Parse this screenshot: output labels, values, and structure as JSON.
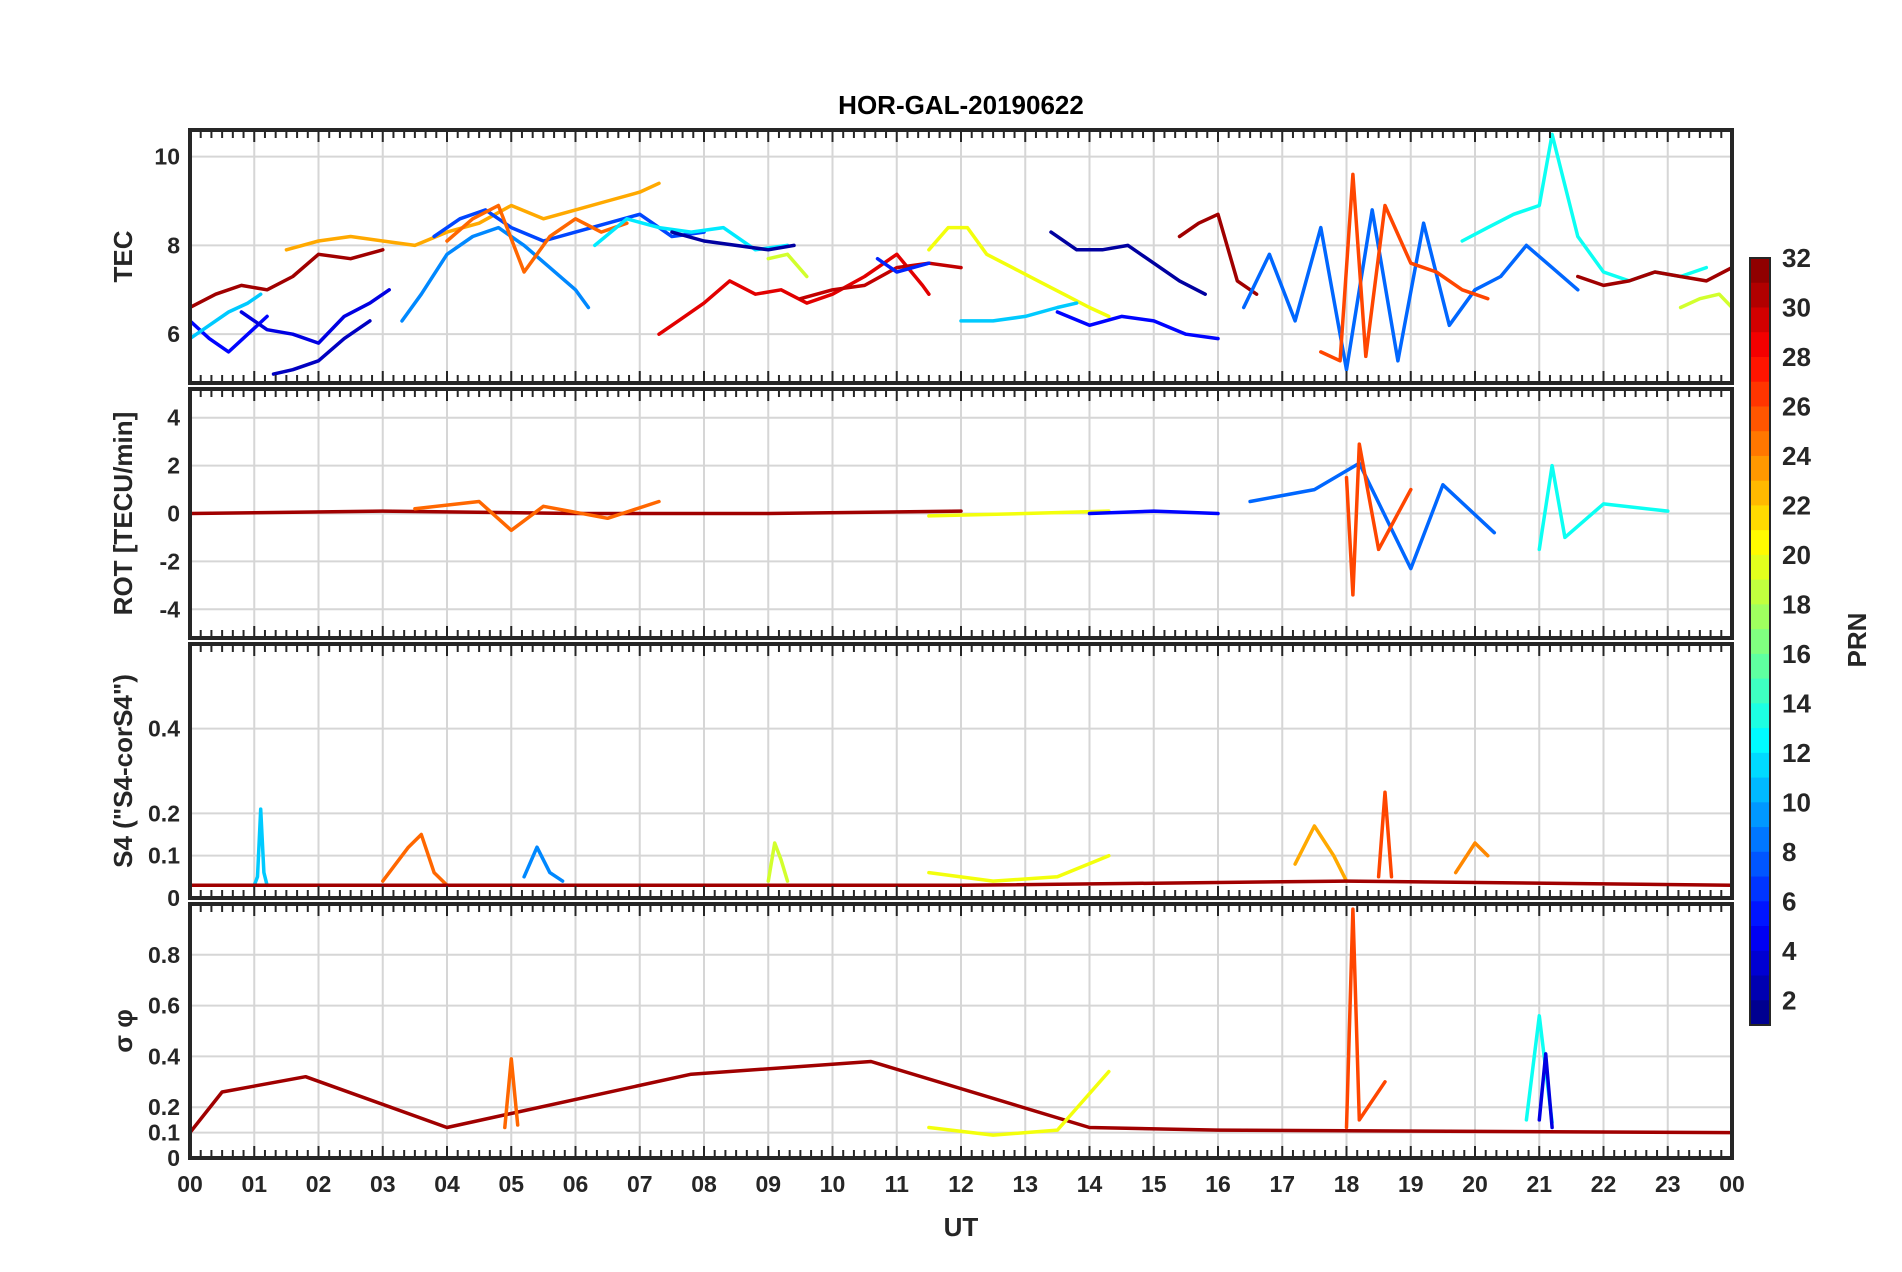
{
  "chart_data": {
    "type": "line",
    "title": "HOR-GAL-20190622",
    "xlabel": "UT",
    "x_ticks": [
      "00",
      "01",
      "02",
      "03",
      "04",
      "05",
      "06",
      "07",
      "08",
      "09",
      "10",
      "11",
      "12",
      "13",
      "14",
      "15",
      "16",
      "17",
      "18",
      "19",
      "20",
      "21",
      "22",
      "23",
      "00"
    ],
    "xlim_hours": [
      0,
      24
    ],
    "colorbar": {
      "label": "PRN",
      "range": [
        1,
        32
      ],
      "ticks": [
        "32",
        "30",
        "28",
        "26",
        "24",
        "22",
        "20",
        "18",
        "16",
        "14",
        "12",
        "10",
        "8",
        "6",
        "4",
        "2"
      ],
      "colormap": "jet"
    },
    "panels": [
      {
        "id": "tec",
        "ylabel": "TEC",
        "ylim": [
          4.9,
          10.6
        ],
        "yticks": [
          "6",
          "8",
          "10"
        ],
        "series": [
          {
            "prn": 5,
            "x": [
              0,
              0.3,
              0.6,
              0.9,
              1.2
            ],
            "y": [
              6.3,
              5.9,
              5.6,
              6.0,
              6.4
            ]
          },
          {
            "prn": 11,
            "x": [
              0,
              0.3,
              0.6,
              0.9,
              1.1
            ],
            "y": [
              5.9,
              6.2,
              6.5,
              6.7,
              6.9
            ]
          },
          {
            "prn": 31,
            "x": [
              0,
              0.4,
              0.8,
              1.2,
              1.6,
              2.0,
              2.5,
              3.0
            ],
            "y": [
              6.6,
              6.9,
              7.1,
              7.0,
              7.3,
              7.8,
              7.7,
              7.9
            ]
          },
          {
            "prn": 4,
            "x": [
              0.8,
              1.2,
              1.6,
              2.0,
              2.4,
              2.8,
              3.1
            ],
            "y": [
              6.5,
              6.1,
              6.0,
              5.8,
              6.4,
              6.7,
              7.0
            ]
          },
          {
            "prn": 3,
            "x": [
              1.3,
              1.6,
              2.0,
              2.4,
              2.8
            ],
            "y": [
              5.1,
              5.2,
              5.4,
              5.9,
              6.3
            ]
          },
          {
            "prn": 23,
            "x": [
              1.5,
              2.0,
              2.5,
              3.0,
              3.5,
              4.0,
              4.5,
              5.0,
              5.5,
              6.0,
              6.5,
              7.0,
              7.3
            ],
            "y": [
              7.9,
              8.1,
              8.2,
              8.1,
              8.0,
              8.3,
              8.5,
              8.9,
              8.6,
              8.8,
              9.0,
              9.2,
              9.4
            ]
          },
          {
            "prn": 9,
            "x": [
              3.3,
              3.6,
              4.0,
              4.4,
              4.8,
              5.2,
              5.6,
              6.0,
              6.2
            ],
            "y": [
              6.3,
              6.9,
              7.8,
              8.2,
              8.4,
              8.0,
              7.5,
              7.0,
              6.6
            ]
          },
          {
            "prn": 7,
            "x": [
              3.8,
              4.2,
              4.6,
              5.0,
              5.5,
              6.0,
              6.5,
              7.0,
              7.5,
              8.0
            ],
            "y": [
              8.2,
              8.6,
              8.8,
              8.4,
              8.1,
              8.3,
              8.5,
              8.7,
              8.2,
              8.3
            ]
          },
          {
            "prn": 25,
            "x": [
              4.0,
              4.4,
              4.8,
              5.2,
              5.6,
              6.0,
              6.4,
              6.8
            ],
            "y": [
              8.1,
              8.6,
              8.9,
              7.4,
              8.2,
              8.6,
              8.3,
              8.5
            ]
          },
          {
            "prn": 12,
            "x": [
              6.3,
              6.8,
              7.3,
              7.8,
              8.3,
              8.8,
              9.3
            ],
            "y": [
              8.0,
              8.6,
              8.4,
              8.3,
              8.4,
              7.9,
              8.0
            ]
          },
          {
            "prn": 2,
            "x": [
              7.5,
              8.0,
              8.5,
              9.0,
              9.4
            ],
            "y": [
              8.3,
              8.1,
              8.0,
              7.9,
              8.0
            ]
          },
          {
            "prn": 19,
            "x": [
              9.0,
              9.3,
              9.6
            ],
            "y": [
              7.7,
              7.8,
              7.3
            ]
          },
          {
            "prn": 29,
            "x": [
              7.3,
              7.6,
              8.0,
              8.4,
              8.8,
              9.2,
              9.6,
              10.0,
              10.5,
              11.0,
              11.4,
              11.5
            ],
            "y": [
              6.0,
              6.3,
              6.7,
              7.2,
              6.9,
              7.0,
              6.7,
              6.9,
              7.3,
              7.8,
              7.1,
              6.9
            ]
          },
          {
            "prn": 30,
            "x": [
              9.5,
              10.0,
              10.5,
              11.0,
              11.5,
              12.0
            ],
            "y": [
              6.8,
              7.0,
              7.1,
              7.5,
              7.6,
              7.5
            ]
          },
          {
            "prn": 6,
            "x": [
              10.7,
              11.0,
              11.5
            ],
            "y": [
              7.7,
              7.4,
              7.6
            ]
          },
          {
            "prn": 20,
            "x": [
              11.5,
              11.8,
              12.1,
              12.4,
              12.8,
              13.2,
              13.6,
              14.0,
              14.3
            ],
            "y": [
              7.9,
              8.4,
              8.4,
              7.8,
              7.5,
              7.2,
              6.9,
              6.6,
              6.4
            ]
          },
          {
            "prn": 11,
            "x": [
              12.0,
              12.5,
              13.0,
              13.5,
              13.8
            ],
            "y": [
              6.3,
              6.3,
              6.4,
              6.6,
              6.7
            ]
          },
          {
            "prn": 2,
            "x": [
              13.4,
              13.8,
              14.2,
              14.6,
              15.0,
              15.4,
              15.8
            ],
            "y": [
              8.3,
              7.9,
              7.9,
              8.0,
              7.6,
              7.2,
              6.9
            ]
          },
          {
            "prn": 5,
            "x": [
              13.5,
              14.0,
              14.5,
              15.0,
              15.5,
              16.0
            ],
            "y": [
              6.5,
              6.2,
              6.4,
              6.3,
              6.0,
              5.9
            ]
          },
          {
            "prn": 31,
            "x": [
              15.4,
              15.7,
              16.0,
              16.3,
              16.6
            ],
            "y": [
              8.2,
              8.5,
              8.7,
              7.2,
              6.9
            ]
          },
          {
            "prn": 8,
            "x": [
              16.4,
              16.8,
              17.2,
              17.6,
              18.0,
              18.4,
              18.8,
              19.2,
              19.6,
              20.0,
              20.4,
              20.8,
              21.2,
              21.6
            ],
            "y": [
              6.6,
              7.8,
              6.3,
              8.4,
              5.2,
              8.8,
              5.4,
              8.5,
              6.2,
              7.0,
              7.3,
              8.0,
              7.5,
              7.0
            ]
          },
          {
            "prn": 26,
            "x": [
              17.6,
              17.9,
              18.1,
              18.3,
              18.6,
              19.0,
              19.4,
              19.8,
              20.2
            ],
            "y": [
              5.6,
              5.4,
              9.6,
              5.5,
              8.9,
              7.6,
              7.4,
              7.0,
              6.8
            ]
          },
          {
            "prn": 13,
            "x": [
              19.8,
              20.2,
              20.6,
              21.0,
              21.2,
              21.6,
              22.0,
              22.4,
              22.8,
              23.2,
              23.6
            ],
            "y": [
              8.1,
              8.4,
              8.7,
              8.9,
              10.5,
              8.2,
              7.4,
              7.2,
              7.4,
              7.3,
              7.5
            ]
          },
          {
            "prn": 31,
            "x": [
              21.6,
              22.0,
              22.4,
              22.8,
              23.2,
              23.6,
              24.0
            ],
            "y": [
              7.3,
              7.1,
              7.2,
              7.4,
              7.3,
              7.2,
              7.5
            ]
          },
          {
            "prn": 19,
            "x": [
              23.2,
              23.5,
              23.8,
              24.0
            ],
            "y": [
              6.6,
              6.8,
              6.9,
              6.6
            ]
          }
        ]
      },
      {
        "id": "rot",
        "ylabel": "ROT [TECU/min]",
        "ylim": [
          -5.2,
          5.2
        ],
        "yticks": [
          "4",
          "2",
          "0",
          "-2",
          "-4"
        ],
        "series": [
          {
            "prn": 31,
            "x": [
              0,
              3,
              6,
              9,
              12
            ],
            "y": [
              0,
              0.1,
              0,
              0,
              0.1
            ]
          },
          {
            "prn": 25,
            "x": [
              3.5,
              4.5,
              5.0,
              5.5,
              6.5,
              7.3
            ],
            "y": [
              0.2,
              0.5,
              -0.7,
              0.3,
              -0.2,
              0.5
            ]
          },
          {
            "prn": 20,
            "x": [
              11.5,
              13,
              14.3
            ],
            "y": [
              -0.1,
              0,
              0.1
            ]
          },
          {
            "prn": 5,
            "x": [
              14,
              15,
              16
            ],
            "y": [
              0,
              0.1,
              0
            ]
          },
          {
            "prn": 8,
            "x": [
              16.5,
              17.5,
              18.2,
              19.0,
              19.5,
              20.3
            ],
            "y": [
              0.5,
              1.0,
              2.1,
              -2.3,
              1.2,
              -0.8
            ]
          },
          {
            "prn": 26,
            "x": [
              18.0,
              18.1,
              18.2,
              18.5,
              19.0
            ],
            "y": [
              1.5,
              -3.4,
              2.9,
              -1.5,
              1.0
            ]
          },
          {
            "prn": 13,
            "x": [
              21.0,
              21.2,
              21.4,
              22.0,
              23.0
            ],
            "y": [
              -1.5,
              2.0,
              -1.0,
              0.4,
              0.1
            ]
          }
        ]
      },
      {
        "id": "s4",
        "ylabel": "S4 (\"S4-corS4\")",
        "ylim": [
          0,
          0.6
        ],
        "yticks": [
          "0.4",
          "0.2",
          "0.1",
          "0"
        ],
        "series": [
          {
            "prn": 11,
            "x": [
              1.0,
              1.05,
              1.1,
              1.15,
              1.2
            ],
            "y": [
              0.03,
              0.05,
              0.21,
              0.06,
              0.03
            ]
          },
          {
            "prn": 25,
            "x": [
              3.0,
              3.4,
              3.6,
              3.8,
              4.0
            ],
            "y": [
              0.04,
              0.12,
              0.15,
              0.06,
              0.03
            ]
          },
          {
            "prn": 9,
            "x": [
              5.2,
              5.4,
              5.6,
              5.8
            ],
            "y": [
              0.05,
              0.12,
              0.06,
              0.04
            ]
          },
          {
            "prn": 19,
            "x": [
              9.0,
              9.1,
              9.2,
              9.3
            ],
            "y": [
              0.04,
              0.13,
              0.09,
              0.04
            ]
          },
          {
            "prn": 20,
            "x": [
              11.5,
              12.5,
              13.5,
              14.3
            ],
            "y": [
              0.06,
              0.04,
              0.05,
              0.1
            ]
          },
          {
            "prn": 23,
            "x": [
              17.2,
              17.5,
              17.8,
              18.0
            ],
            "y": [
              0.08,
              0.17,
              0.1,
              0.04
            ]
          },
          {
            "prn": 26,
            "x": [
              18.5,
              18.6,
              18.7
            ],
            "y": [
              0.05,
              0.25,
              0.05
            ]
          },
          {
            "prn": 24,
            "x": [
              19.7,
              20.0,
              20.2
            ],
            "y": [
              0.06,
              0.13,
              0.1
            ]
          },
          {
            "prn": 31,
            "x": [
              0,
              6,
              12,
              18,
              24
            ],
            "y": [
              0.03,
              0.03,
              0.03,
              0.04,
              0.03
            ]
          }
        ]
      },
      {
        "id": "sigma_phi",
        "ylabel": "σ φ",
        "ylim": [
          0,
          1.0
        ],
        "yticks": [
          "0.8",
          "0.6",
          "0.4",
          "0.2",
          "0.1",
          "0"
        ],
        "series": [
          {
            "prn": 31,
            "x": [
              0,
              0.5,
              1.8,
              4,
              7.8,
              10.6,
              14,
              16,
              24
            ],
            "y": [
              0.1,
              0.26,
              0.32,
              0.12,
              0.33,
              0.38,
              0.12,
              0.11,
              0.1
            ]
          },
          {
            "prn": 25,
            "x": [
              4.9,
              5.0,
              5.1
            ],
            "y": [
              0.12,
              0.39,
              0.13
            ]
          },
          {
            "prn": 20,
            "x": [
              11.5,
              12.5,
              13.5,
              14.3
            ],
            "y": [
              0.12,
              0.09,
              0.11,
              0.34
            ]
          },
          {
            "prn": 26,
            "x": [
              18.0,
              18.1,
              18.2,
              18.6
            ],
            "y": [
              0.12,
              0.98,
              0.15,
              0.3
            ]
          },
          {
            "prn": 13,
            "x": [
              20.8,
              21.0,
              21.2
            ],
            "y": [
              0.15,
              0.56,
              0.14
            ]
          },
          {
            "prn": 4,
            "x": [
              21.0,
              21.1,
              21.2
            ],
            "y": [
              0.15,
              0.41,
              0.12
            ]
          }
        ]
      }
    ]
  }
}
